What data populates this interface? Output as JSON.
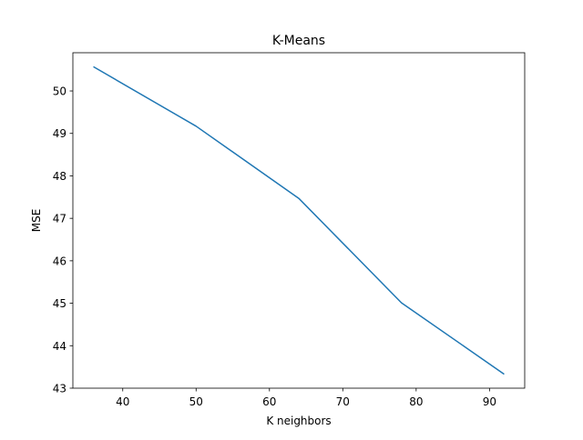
{
  "chart_data": {
    "type": "line",
    "title": "K-Means",
    "xlabel": "K neighbors",
    "ylabel": "MSE",
    "xlim": [
      33.2,
      94.8
    ],
    "ylim": [
      43.0,
      50.9
    ],
    "xticks": [
      40,
      50,
      60,
      70,
      80,
      90
    ],
    "yticks": [
      43,
      44,
      45,
      46,
      47,
      48,
      49,
      50
    ],
    "grid": false,
    "legend": "none",
    "series": [
      {
        "color": "#1f77b4",
        "x": [
          36,
          50,
          64,
          78,
          92
        ],
        "y": [
          50.57,
          49.17,
          47.47,
          45.01,
          43.33
        ]
      }
    ]
  }
}
